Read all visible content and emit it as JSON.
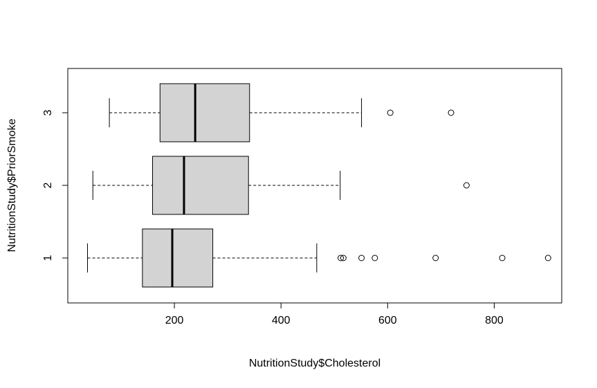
{
  "chart_data": {
    "type": "boxplot",
    "orientation": "horizontal",
    "title": "",
    "xlabel": "NutritionStudy$Cholesterol",
    "ylabel": "NutritionStudy$PriorSmoke",
    "xlim": [
      0,
      930
    ],
    "x_ticks": [
      200,
      400,
      600,
      800
    ],
    "categories": [
      "1",
      "2",
      "3"
    ],
    "boxes": [
      {
        "category": "1",
        "whisker_low": 37,
        "q1": 140,
        "median": 196,
        "q3": 272,
        "whisker_high": 467,
        "outliers": [
          512,
          517,
          551,
          576,
          690,
          815,
          901
        ]
      },
      {
        "category": "2",
        "whisker_low": 47,
        "q1": 159,
        "median": 218,
        "q3": 339,
        "whisker_high": 511,
        "outliers": [
          748
        ]
      },
      {
        "category": "3",
        "whisker_low": 78,
        "q1": 173,
        "median": 239,
        "q3": 341,
        "whisker_high": 551,
        "outliers": [
          605,
          719
        ]
      }
    ],
    "box_fill": "#d3d3d3",
    "grid": false,
    "legend": "none"
  }
}
